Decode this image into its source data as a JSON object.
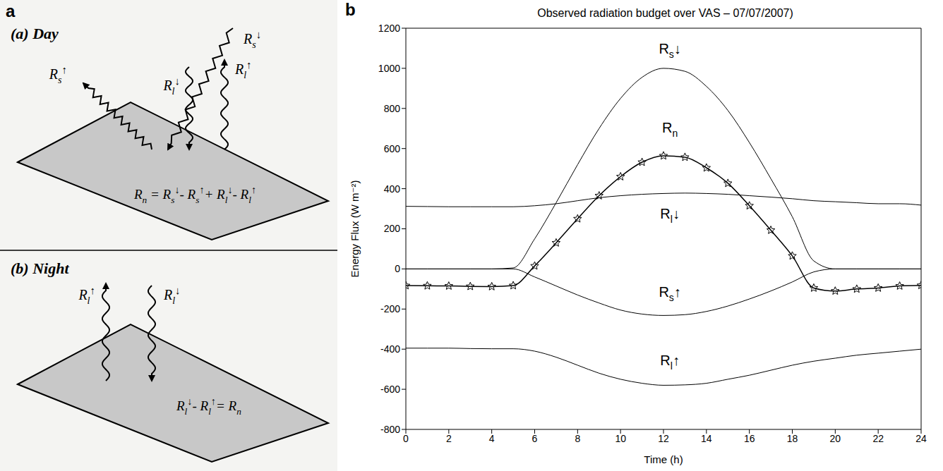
{
  "panel_labels": [
    "a",
    "b"
  ],
  "diagram": {
    "day": {
      "title": "(a) Day",
      "arrows": [
        "Rs↓",
        "Rs↑",
        "Rl↓",
        "Rl↑"
      ],
      "equation": "Rn = Rs↓- Rs↑+ Rl↓- Rl↑"
    },
    "night": {
      "title": "(b) Night",
      "arrows": [
        "Rl↑",
        "Rl↓"
      ],
      "equation": "Rl↓- Rl↑= Rn"
    }
  },
  "chart_data": {
    "type": "line",
    "title": "Observed radiation budget over VAS – 07/07/2007)",
    "xlabel": "Time (h)",
    "ylabel": "Energy Flux (W m⁻²)",
    "x": [
      0,
      1,
      2,
      3,
      4,
      5,
      6,
      7,
      8,
      9,
      10,
      11,
      12,
      13,
      14,
      15,
      16,
      17,
      18,
      19,
      20,
      21,
      22,
      23,
      24
    ],
    "series": [
      {
        "name": "Rs↓",
        "color": "#000000",
        "marker": "none",
        "line_style": "solid",
        "values": [
          0,
          0,
          0,
          0,
          0,
          5,
          150,
          330,
          520,
          700,
          850,
          955,
          1000,
          985,
          910,
          790,
          630,
          450,
          260,
          40,
          0,
          0,
          0,
          0,
          0
        ]
      },
      {
        "name": "Rn",
        "color": "#000000",
        "marker": "star",
        "line_style": "solid",
        "values": [
          -83,
          -84,
          -85,
          -87,
          -88,
          -83,
          15,
          130,
          250,
          365,
          460,
          532,
          564,
          557,
          504,
          427,
          315,
          193,
          65,
          -95,
          -110,
          -100,
          -95,
          -85,
          -82
        ]
      },
      {
        "name": "Rl↓",
        "color": "#000000",
        "marker": "none",
        "line_style": "solid",
        "values": [
          312,
          311,
          310,
          310,
          310,
          310,
          315,
          325,
          340,
          355,
          365,
          372,
          376,
          378,
          376,
          372,
          365,
          358,
          350,
          340,
          335,
          330,
          325,
          325,
          318
        ]
      },
      {
        "name": "Rs↑",
        "color": "#000000",
        "marker": "none",
        "line_style": "solid",
        "values": [
          0,
          0,
          0,
          0,
          0,
          0,
          -40,
          -85,
          -130,
          -170,
          -205,
          -225,
          -232,
          -228,
          -212,
          -185,
          -150,
          -110,
          -65,
          -15,
          0,
          0,
          0,
          0,
          0
        ]
      },
      {
        "name": "Rl↑",
        "color": "#000000",
        "marker": "none",
        "line_style": "solid",
        "values": [
          -395,
          -395,
          -395,
          -397,
          -398,
          -398,
          -410,
          -440,
          -480,
          -520,
          -550,
          -570,
          -580,
          -578,
          -570,
          -550,
          -530,
          -505,
          -480,
          -460,
          -445,
          -430,
          -420,
          -410,
          -400
        ]
      }
    ],
    "xlim": [
      0,
      24
    ],
    "xticks": [
      0,
      2,
      4,
      6,
      8,
      10,
      12,
      14,
      16,
      18,
      20,
      22,
      24
    ],
    "ylim": [
      -800,
      1200
    ],
    "yticks": [
      -800,
      -600,
      -400,
      -200,
      0,
      200,
      400,
      600,
      800,
      1000,
      1200
    ],
    "grid": false
  }
}
